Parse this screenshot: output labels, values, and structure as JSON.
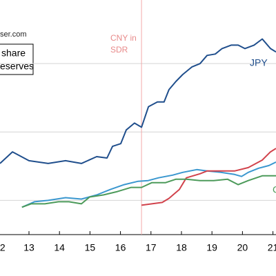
{
  "chart_data": {
    "type": "line",
    "source": "ser.com",
    "legend_lines": [
      "share",
      "eserves"
    ],
    "annotation_lines": [
      "CNY in",
      "SDR"
    ],
    "annotation_x": 16.69,
    "xlim": [
      12.05,
      21.1
    ],
    "xticks": [
      {
        "value": 12,
        "label": "2"
      },
      13,
      14,
      15,
      16,
      17,
      18,
      19,
      20,
      21
    ],
    "ylim": [
      0.5,
      3.93
    ],
    "ygrid": [
      1,
      2,
      3
    ],
    "grid": true,
    "series": [
      {
        "name": "JPY",
        "color": "#1f4e8c",
        "x": [
          12.05,
          12.46,
          13,
          13.63,
          14.2,
          14.72,
          15.22,
          15.56,
          15.74,
          16.01,
          16.19,
          16.46,
          16.69,
          16.92,
          17.21,
          17.43,
          17.59,
          17.82,
          18.04,
          18.34,
          18.61,
          18.84,
          19.11,
          19.33,
          19.63,
          19.86,
          20.08,
          20.38,
          20.65,
          20.92,
          21.1
        ],
        "values": [
          1.54,
          1.71,
          1.58,
          1.54,
          1.58,
          1.54,
          1.64,
          1.62,
          1.79,
          1.83,
          2.03,
          2.13,
          2.07,
          2.37,
          2.44,
          2.44,
          2.62,
          2.74,
          2.84,
          2.95,
          3.0,
          3.12,
          3.14,
          3.22,
          3.27,
          3.27,
          3.22,
          3.27,
          3.36,
          3.22,
          3.17
        ]
      },
      {
        "color": "#3a97cf",
        "x": [
          12.77,
          13.18,
          13.63,
          14.2,
          14.72,
          15.22,
          15.67,
          16.12,
          16.58,
          16.91,
          17.25,
          17.71,
          18.04,
          18.5,
          18.84,
          19.29,
          19.74,
          19.97,
          20.19,
          20.53,
          20.87,
          21.1
        ],
        "values": [
          0.9,
          0.98,
          1.0,
          1.04,
          1.02,
          1.08,
          1.16,
          1.23,
          1.28,
          1.29,
          1.33,
          1.37,
          1.41,
          1.45,
          1.43,
          1.41,
          1.38,
          1.35,
          1.41,
          1.47,
          1.51,
          1.56
        ]
      },
      {
        "color": "#d1424b",
        "x": [
          16.69,
          17.37,
          17.59,
          17.93,
          18.16,
          18.61,
          18.84,
          19.29,
          19.74,
          20.19,
          20.65,
          20.92,
          21.1
        ],
        "values": [
          0.93,
          0.97,
          1.03,
          1.16,
          1.33,
          1.39,
          1.43,
          1.43,
          1.43,
          1.48,
          1.59,
          1.71,
          1.76
        ]
      },
      {
        "name": "C",
        "color": "#4c9a5a",
        "x": [
          12.77,
          13.07,
          13.52,
          13.97,
          14.31,
          14.72,
          14.99,
          15.44,
          15.9,
          16.35,
          16.69,
          17.03,
          17.48,
          17.82,
          18.16,
          18.61,
          19.06,
          19.51,
          19.86,
          20.19,
          20.65,
          21.1
        ],
        "values": [
          0.9,
          0.95,
          0.95,
          0.98,
          0.98,
          0.95,
          1.05,
          1.08,
          1.13,
          1.19,
          1.19,
          1.26,
          1.26,
          1.31,
          1.31,
          1.29,
          1.29,
          1.31,
          1.23,
          1.29,
          1.36,
          1.36
        ]
      }
    ]
  }
}
